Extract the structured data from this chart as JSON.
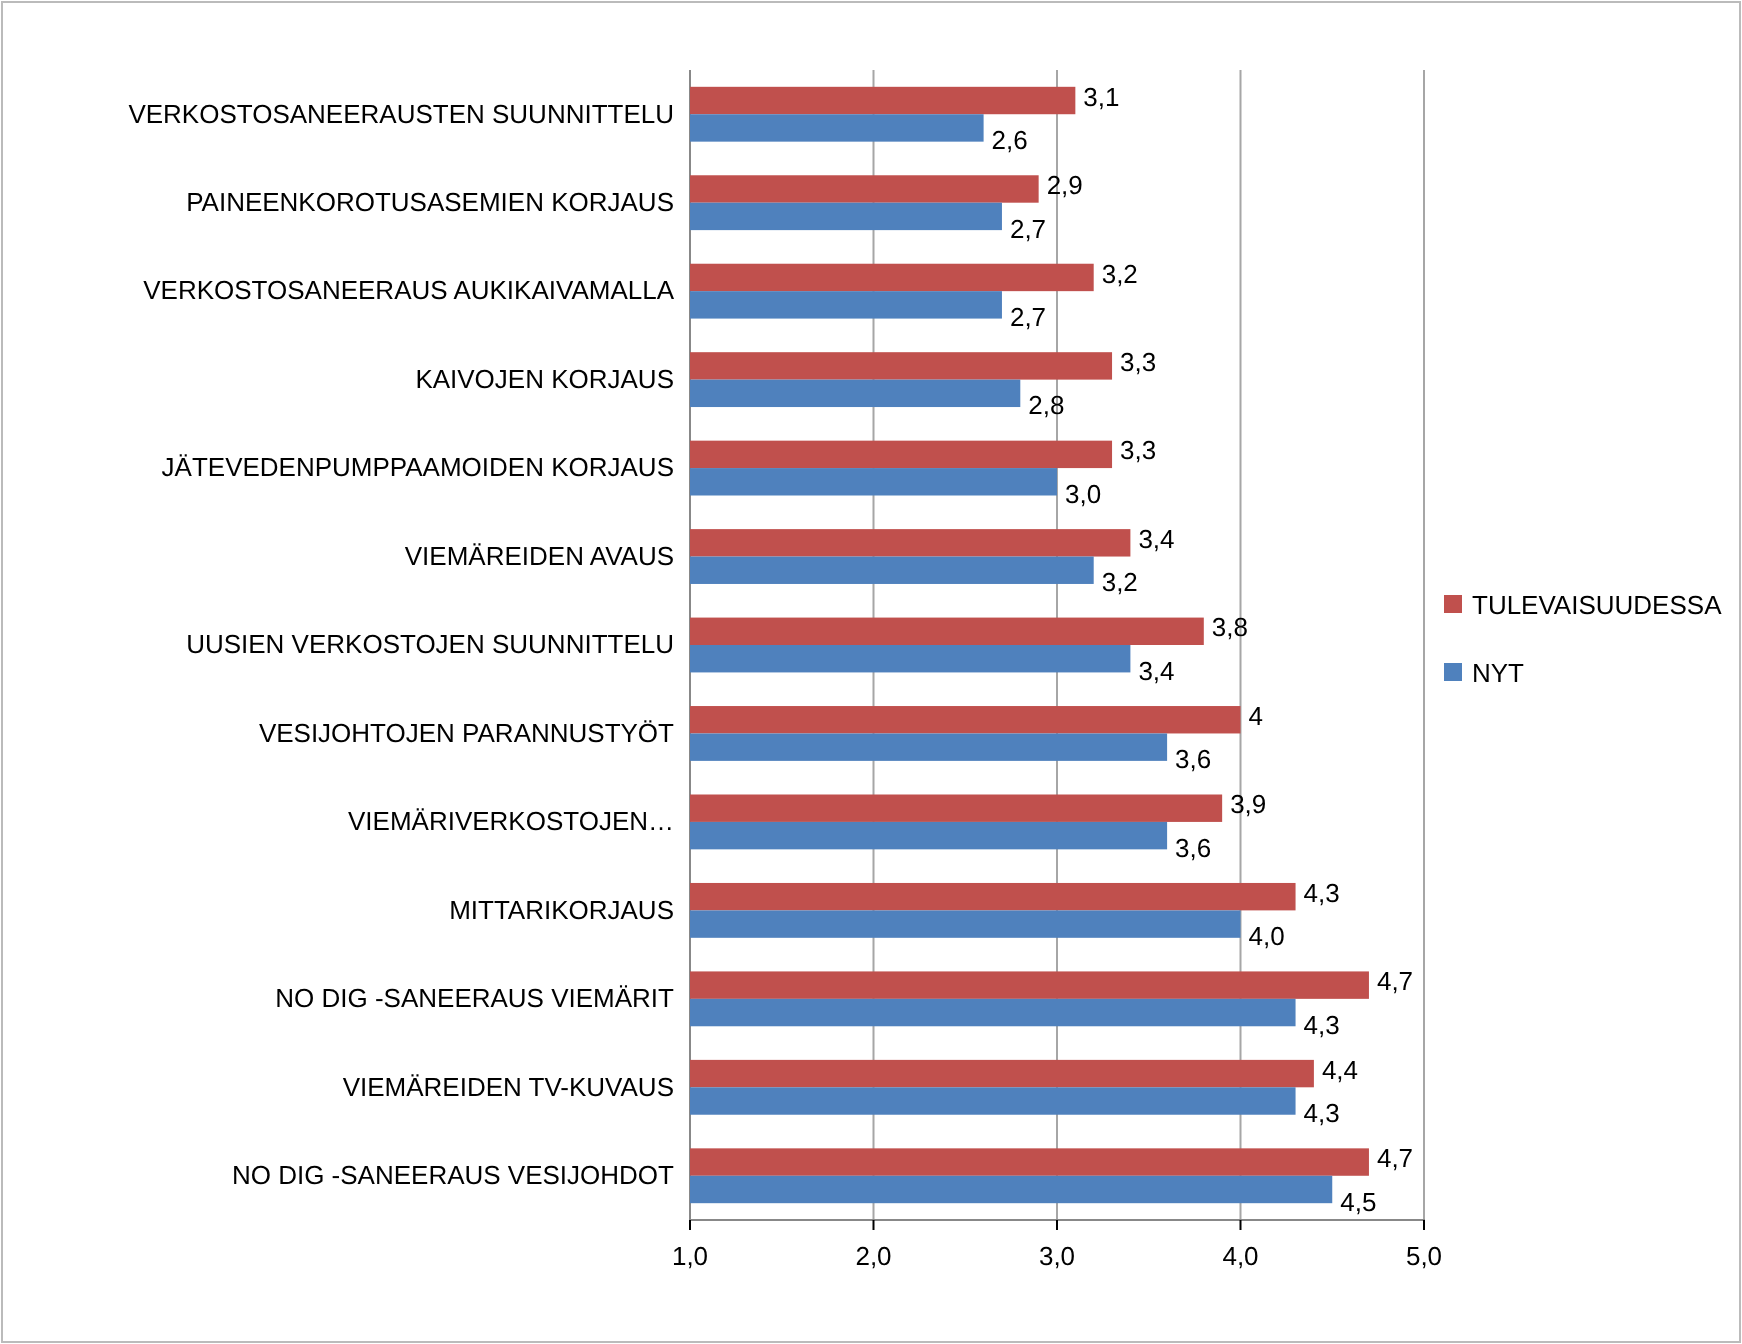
{
  "chart_data": {
    "type": "bar",
    "orientation": "horizontal",
    "categories": [
      "VERKOSTOSANEERAUSTEN SUUNNITTELU",
      "PAINEENKOROTUSASEMIEN KORJAUS",
      "VERKOSTOSANEERAUS AUKIKAIVAMALLA",
      "KAIVOJEN KORJAUS",
      "JÄTEVEDENPUMPPAAMOIDEN KORJAUS",
      "VIEMÄREIDEN AVAUS",
      "UUSIEN VERKOSTOJEN SUUNNITTELU",
      "VESIJOHTOJEN PARANNUSTYÖT",
      "VIEMÄRIVERKOSTOJEN…",
      "MITTARIKORJAUS",
      "NO DIG -SANEERAUS VIEMÄRIT",
      "VIEMÄREIDEN TV-KUVAUS",
      "NO DIG -SANEERAUS VESIJOHDOT"
    ],
    "series": [
      {
        "name": "TULEVAISUUDESSA",
        "color": "#c0504d",
        "values": [
          3.1,
          2.9,
          3.2,
          3.3,
          3.3,
          3.4,
          3.8,
          4,
          3.9,
          4.3,
          4.7,
          4.4,
          4.7
        ],
        "value_labels": [
          "3,1",
          "2,9",
          "3,2",
          "3,3",
          "3,3",
          "3,4",
          "3,8",
          "4",
          "3,9",
          "4,3",
          "4,7",
          "4,4",
          "4,7"
        ]
      },
      {
        "name": "NYT",
        "color": "#4f81bd",
        "values": [
          2.6,
          2.7,
          2.7,
          2.8,
          3.0,
          3.2,
          3.4,
          3.6,
          3.6,
          4.0,
          4.3,
          4.3,
          4.5
        ],
        "value_labels": [
          "2,6",
          "2,7",
          "2,7",
          "2,8",
          "3,0",
          "3,2",
          "3,4",
          "3,6",
          "3,6",
          "4,0",
          "4,3",
          "4,3",
          "4,5"
        ]
      }
    ],
    "xlim": [
      1,
      5
    ],
    "xticks": [
      {
        "value": 1,
        "label": "1,0"
      },
      {
        "value": 2,
        "label": "2,0"
      },
      {
        "value": 3,
        "label": "3,0"
      },
      {
        "value": 4,
        "label": "4,0"
      },
      {
        "value": 5,
        "label": "5,0"
      }
    ],
    "grid": "x",
    "legend": "right"
  }
}
